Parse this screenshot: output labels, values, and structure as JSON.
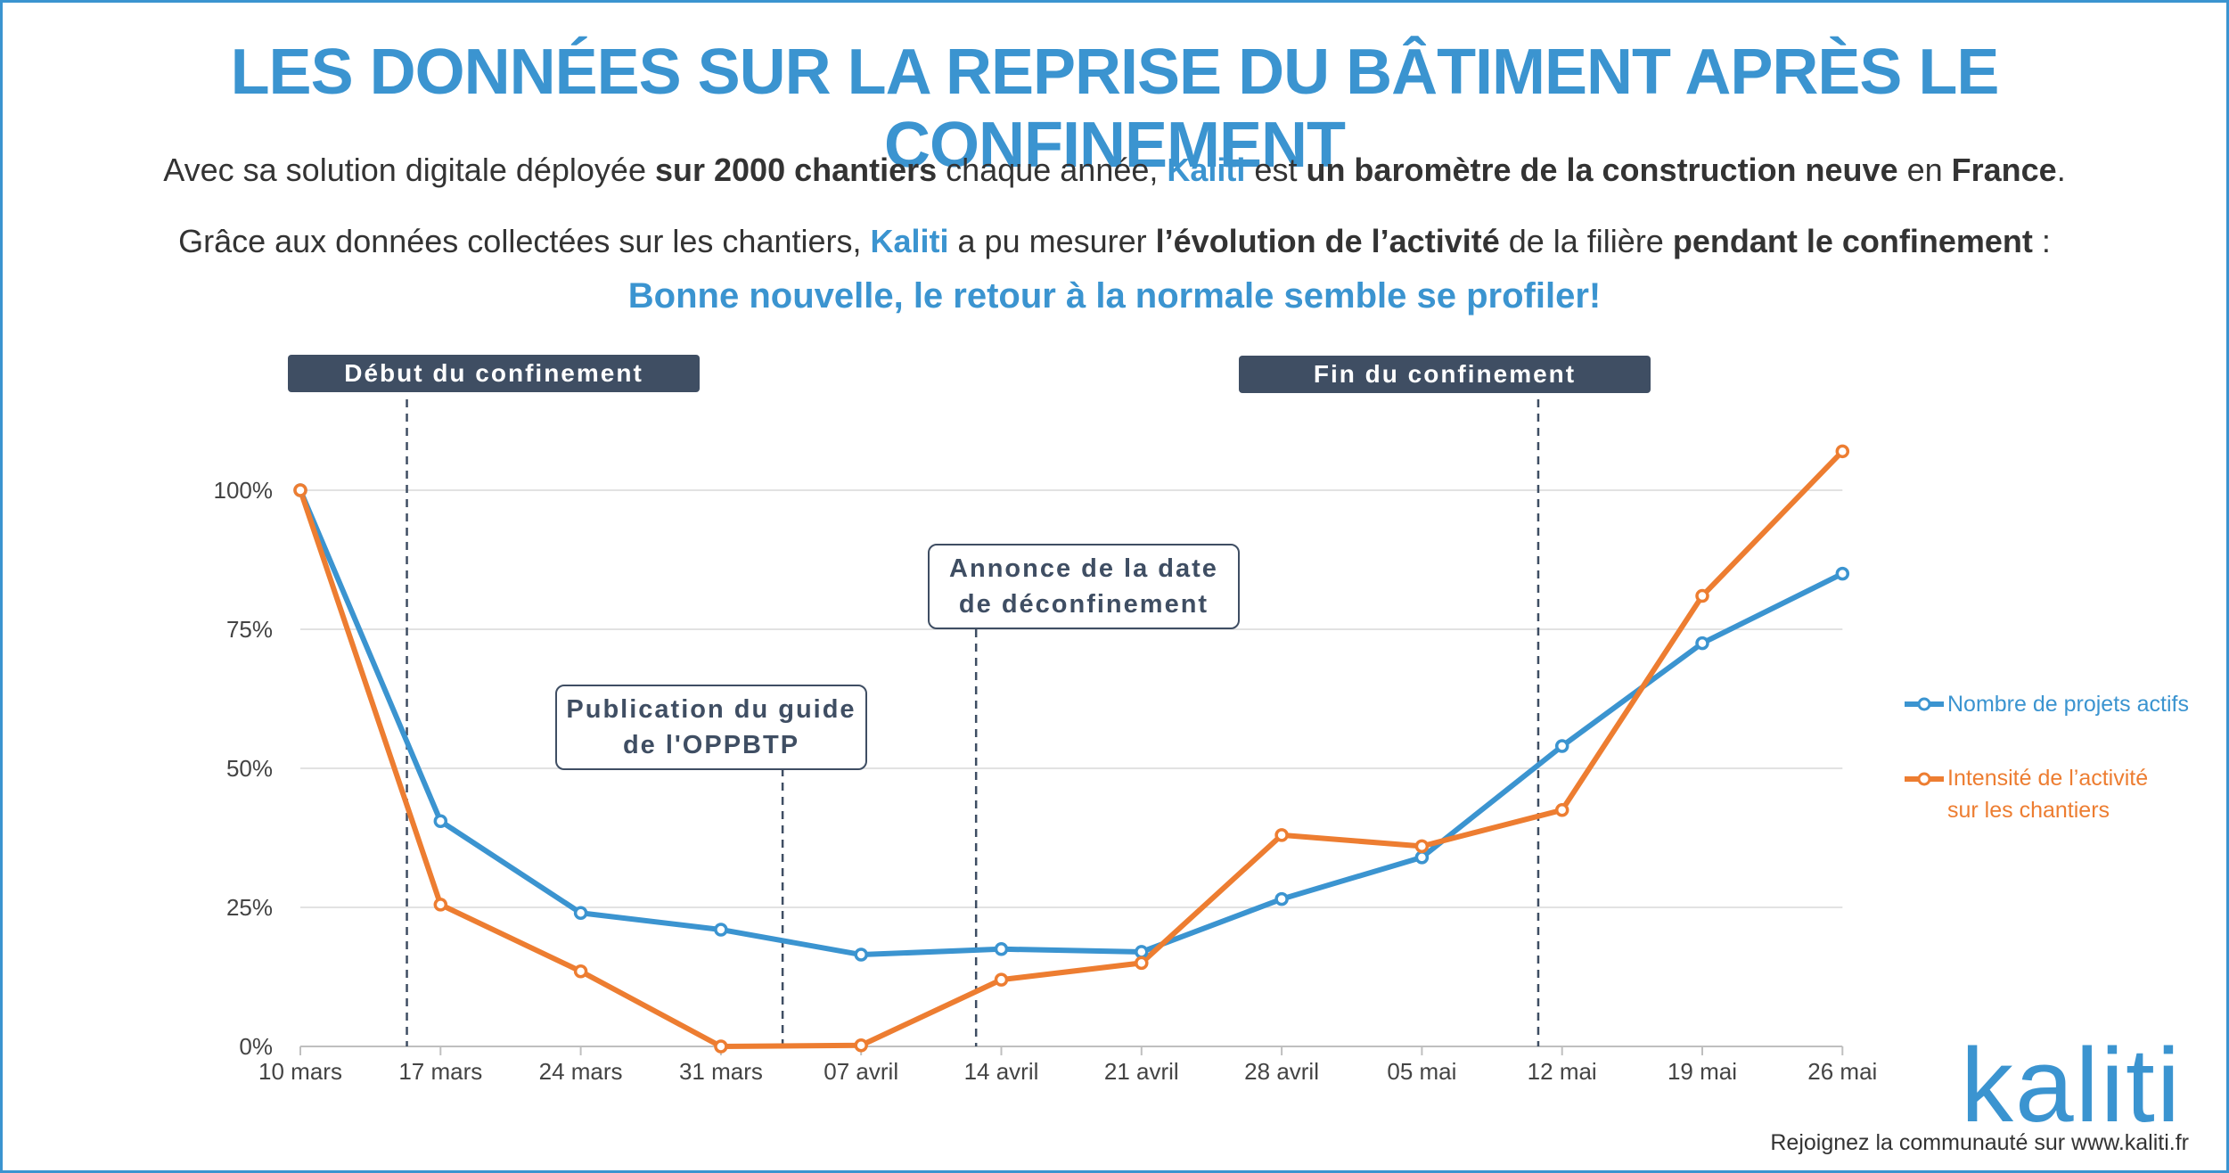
{
  "header": {
    "title": "LES DONNÉES SUR LA REPRISE DU BÂTIMENT APRÈS LE CONFINEMENT",
    "intro1": {
      "a": "Avec sa solution digitale déployée ",
      "b": "sur 2000 chantiers",
      "c": " chaque année, ",
      "d": "Kaliti",
      "e": " est ",
      "f": "un baromètre de la construction neuve",
      "g": " en ",
      "h": "France",
      "i": "."
    },
    "intro2": {
      "a": "Grâce aux données collectées sur les chantiers, ",
      "b": "Kaliti",
      "c": " a pu mesurer ",
      "d": "l’évolution de l’activité",
      "e": " de la filière ",
      "f": "pendant le confinement",
      "g": " :"
    },
    "good_news": "Bonne nouvelle, le retour à la normale semble se profiler!"
  },
  "annotations": {
    "debut": "Début du confinement",
    "fin": "Fin du confinement",
    "guide_line1": "Publication du guide",
    "guide_line2": "de l'OPPBTP",
    "annonce_line1": "Annonce de la date",
    "annonce_line2": "de déconfinement"
  },
  "chart_data": {
    "type": "line",
    "categories": [
      "10 mars",
      "17 mars",
      "24 mars",
      "31 mars",
      "07 avril",
      "14 avril",
      "21 avril",
      "28 avril",
      "05 mai",
      "12 mai",
      "19 mai",
      "26 mai"
    ],
    "y_ticks": [
      "0%",
      "25%",
      "50%",
      "75%",
      "100%"
    ],
    "ylim": [
      0,
      100
    ],
    "grid": true,
    "legend_position": "right",
    "series": [
      {
        "name": "Nombre de projets actifs",
        "color": "#3b94d0",
        "values": [
          100,
          40.5,
          24,
          21,
          16.5,
          17.5,
          17,
          26.5,
          34,
          54,
          72.5,
          85
        ]
      },
      {
        "name_line1": "Intensité de l’activité",
        "name_line2": "sur les chantiers",
        "color": "#ed7d31",
        "values": [
          100,
          25.5,
          13.5,
          0,
          0.2,
          12,
          15,
          38,
          36,
          42.5,
          81,
          107
        ]
      }
    ],
    "event_markers": [
      {
        "label": "Début du confinement",
        "at_category": 0.76
      },
      {
        "label": "Publication du guide de l'OPPBTP",
        "at_category": 3.44
      },
      {
        "label": "Annonce de la date de déconfinement",
        "at_category": 4.82
      },
      {
        "label": "Fin du confinement",
        "at_category": 8.83
      }
    ]
  },
  "brand": {
    "logo": "kaliti",
    "footer": "Rejoignez la communauté sur www.kaliti.fr"
  }
}
